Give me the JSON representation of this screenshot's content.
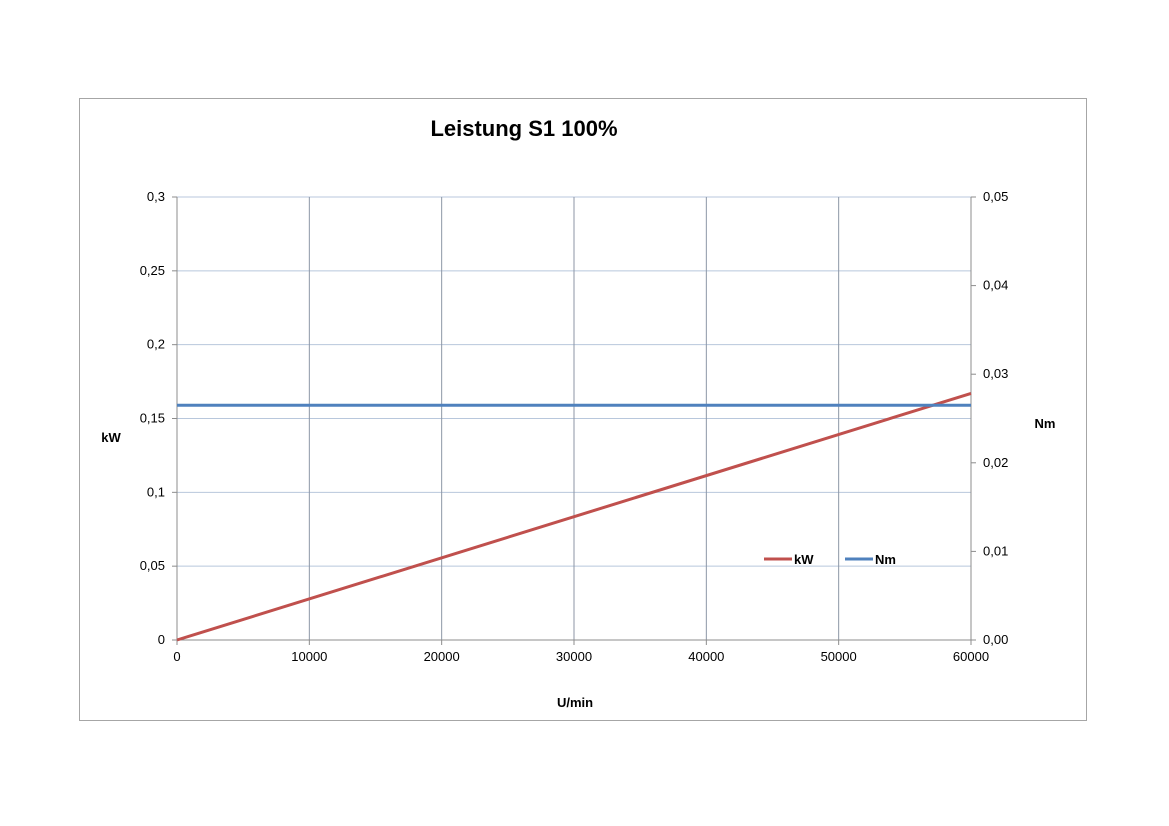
{
  "chart_data": {
    "type": "line",
    "title": "Leistung S1 100%",
    "xlabel": "U/min",
    "ylabel": "kW",
    "y2label": "Nm",
    "xlim": [
      0,
      60000
    ],
    "ylim": [
      0,
      0.3
    ],
    "y2lim": [
      0,
      0.05
    ],
    "x_ticks": [
      "0",
      "10000",
      "20000",
      "30000",
      "40000",
      "50000",
      "60000"
    ],
    "y_ticks": [
      "0",
      "0,05",
      "0,1",
      "0,15",
      "0,2",
      "0,25",
      "0,3"
    ],
    "y2_ticks": [
      "0,00",
      "0,01",
      "0,02",
      "0,03",
      "0,04",
      "0,05"
    ],
    "grid": true,
    "legend_position": "right",
    "series": [
      {
        "name": "kW",
        "axis": "left",
        "color": "#c0504d",
        "x": [
          0,
          60000
        ],
        "values": [
          0,
          0.167
        ]
      },
      {
        "name": "Nm",
        "axis": "right",
        "color": "#4f81bd",
        "x": [
          0,
          60000
        ],
        "values": [
          0.0265,
          0.0265
        ]
      }
    ]
  }
}
